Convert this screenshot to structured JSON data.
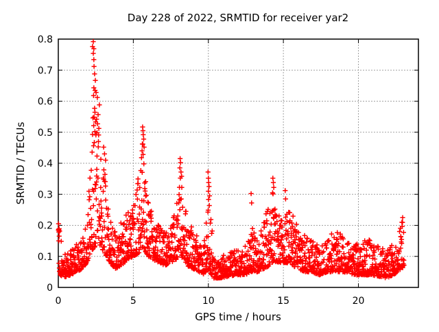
{
  "chart_data": {
    "type": "scatter",
    "title": "Day 228 of 2022, SRMTID for receiver yar2",
    "xlabel": "GPS time / hours",
    "ylabel": "SRMTID / TECUs",
    "xlim": [
      0,
      24
    ],
    "ylim": [
      0,
      0.8
    ],
    "xticks": [
      0,
      5,
      10,
      15,
      20
    ],
    "yticks": [
      0,
      0.1,
      0.2,
      0.3,
      0.4,
      0.5,
      0.6,
      0.7,
      0.8
    ],
    "grid": true,
    "grid_style": "dashed",
    "legend": "none",
    "marker": "+",
    "marker_color": "#ff0000",
    "grid_color": "#a0a0a0",
    "axis_color": "#000000",
    "background": "#ffffff",
    "scatter": {
      "x_range": [
        0,
        23.05
      ],
      "n_points": 1900,
      "seed": 228,
      "density_power": 2.0,
      "band_envelope": [
        [
          0.0,
          0.05,
          0.21
        ],
        [
          0.15,
          0.04,
          0.17
        ],
        [
          0.35,
          0.03,
          0.11
        ],
        [
          0.8,
          0.04,
          0.12
        ],
        [
          1.2,
          0.05,
          0.14
        ],
        [
          1.6,
          0.06,
          0.18
        ],
        [
          1.9,
          0.08,
          0.24
        ],
        [
          2.1,
          0.1,
          0.38
        ],
        [
          2.25,
          0.12,
          0.62
        ],
        [
          2.45,
          0.13,
          0.72
        ],
        [
          2.6,
          0.13,
          0.6
        ],
        [
          2.75,
          0.13,
          0.5
        ],
        [
          3.0,
          0.12,
          0.44
        ],
        [
          3.2,
          0.1,
          0.34
        ],
        [
          3.45,
          0.08,
          0.22
        ],
        [
          3.8,
          0.06,
          0.19
        ],
        [
          4.2,
          0.07,
          0.22
        ],
        [
          4.6,
          0.09,
          0.25
        ],
        [
          5.0,
          0.1,
          0.3
        ],
        [
          5.35,
          0.11,
          0.36
        ],
        [
          5.6,
          0.13,
          0.48
        ],
        [
          5.75,
          0.12,
          0.44
        ],
        [
          6.0,
          0.1,
          0.33
        ],
        [
          6.3,
          0.09,
          0.25
        ],
        [
          6.7,
          0.08,
          0.2
        ],
        [
          7.1,
          0.07,
          0.18
        ],
        [
          7.5,
          0.08,
          0.2
        ],
        [
          7.85,
          0.09,
          0.26
        ],
        [
          8.1,
          0.11,
          0.38
        ],
        [
          8.3,
          0.09,
          0.33
        ],
        [
          8.6,
          0.07,
          0.22
        ],
        [
          9.0,
          0.06,
          0.19
        ],
        [
          9.4,
          0.05,
          0.17
        ],
        [
          9.7,
          0.04,
          0.13
        ],
        [
          9.95,
          0.06,
          0.33
        ],
        [
          10.1,
          0.05,
          0.28
        ],
        [
          10.35,
          0.03,
          0.12
        ],
        [
          10.8,
          0.03,
          0.1
        ],
        [
          11.3,
          0.035,
          0.11
        ],
        [
          11.8,
          0.04,
          0.12
        ],
        [
          12.3,
          0.04,
          0.12
        ],
        [
          12.75,
          0.045,
          0.16
        ],
        [
          12.95,
          0.05,
          0.21
        ],
        [
          13.3,
          0.05,
          0.15
        ],
        [
          13.7,
          0.06,
          0.22
        ],
        [
          14.05,
          0.07,
          0.28
        ],
        [
          14.3,
          0.08,
          0.33
        ],
        [
          14.6,
          0.08,
          0.28
        ],
        [
          14.95,
          0.08,
          0.3
        ],
        [
          15.2,
          0.08,
          0.27
        ],
        [
          15.6,
          0.07,
          0.25
        ],
        [
          16.0,
          0.06,
          0.22
        ],
        [
          16.4,
          0.05,
          0.17
        ],
        [
          16.9,
          0.05,
          0.15
        ],
        [
          17.4,
          0.04,
          0.14
        ],
        [
          17.9,
          0.05,
          0.15
        ],
        [
          18.4,
          0.05,
          0.19
        ],
        [
          18.9,
          0.05,
          0.18
        ],
        [
          19.4,
          0.045,
          0.14
        ],
        [
          19.9,
          0.04,
          0.14
        ],
        [
          20.4,
          0.04,
          0.15
        ],
        [
          20.9,
          0.04,
          0.16
        ],
        [
          21.4,
          0.035,
          0.13
        ],
        [
          21.9,
          0.03,
          0.12
        ],
        [
          22.3,
          0.04,
          0.14
        ],
        [
          22.65,
          0.05,
          0.17
        ],
        [
          22.9,
          0.06,
          0.21
        ],
        [
          23.05,
          0.07,
          0.22
        ]
      ],
      "outliers": [
        [
          0.02,
          0.205
        ],
        [
          0.04,
          0.185
        ],
        [
          0.06,
          0.165
        ],
        [
          0.03,
          0.15
        ],
        [
          2.33,
          0.792
        ],
        [
          2.28,
          0.776
        ],
        [
          2.37,
          0.769
        ],
        [
          2.33,
          0.754
        ],
        [
          2.37,
          0.734
        ],
        [
          2.38,
          0.712
        ],
        [
          2.42,
          0.688
        ],
        [
          2.47,
          0.667
        ],
        [
          2.37,
          0.643
        ],
        [
          2.45,
          0.635
        ],
        [
          2.52,
          0.628
        ],
        [
          2.35,
          0.618
        ],
        [
          2.6,
          0.612
        ],
        [
          2.74,
          0.588
        ],
        [
          2.42,
          0.577
        ],
        [
          2.31,
          0.546
        ],
        [
          2.55,
          0.542
        ],
        [
          2.48,
          0.533
        ],
        [
          2.62,
          0.527
        ],
        [
          2.36,
          0.521
        ],
        [
          2.7,
          0.512
        ],
        [
          2.44,
          0.502
        ],
        [
          3.02,
          0.452
        ],
        [
          3.08,
          0.43
        ],
        [
          3.15,
          0.41
        ],
        [
          5.62,
          0.517
        ],
        [
          5.64,
          0.505
        ],
        [
          5.66,
          0.492
        ],
        [
          5.69,
          0.478
        ],
        [
          5.6,
          0.462
        ],
        [
          5.72,
          0.452
        ],
        [
          5.58,
          0.44
        ],
        [
          5.65,
          0.428
        ],
        [
          8.12,
          0.415
        ],
        [
          8.15,
          0.402
        ],
        [
          8.1,
          0.385
        ],
        [
          8.18,
          0.372
        ],
        [
          8.22,
          0.358
        ],
        [
          9.98,
          0.372
        ],
        [
          10.0,
          0.352
        ],
        [
          10.02,
          0.338
        ],
        [
          10.05,
          0.325
        ],
        [
          10.0,
          0.31
        ],
        [
          10.08,
          0.295
        ],
        [
          12.85,
          0.302
        ],
        [
          12.88,
          0.272
        ],
        [
          14.3,
          0.352
        ],
        [
          14.33,
          0.338
        ],
        [
          14.36,
          0.322
        ],
        [
          14.28,
          0.305
        ],
        [
          15.12,
          0.312
        ],
        [
          15.15,
          0.285
        ],
        [
          22.95,
          0.225
        ],
        [
          22.9,
          0.21
        ]
      ]
    }
  }
}
